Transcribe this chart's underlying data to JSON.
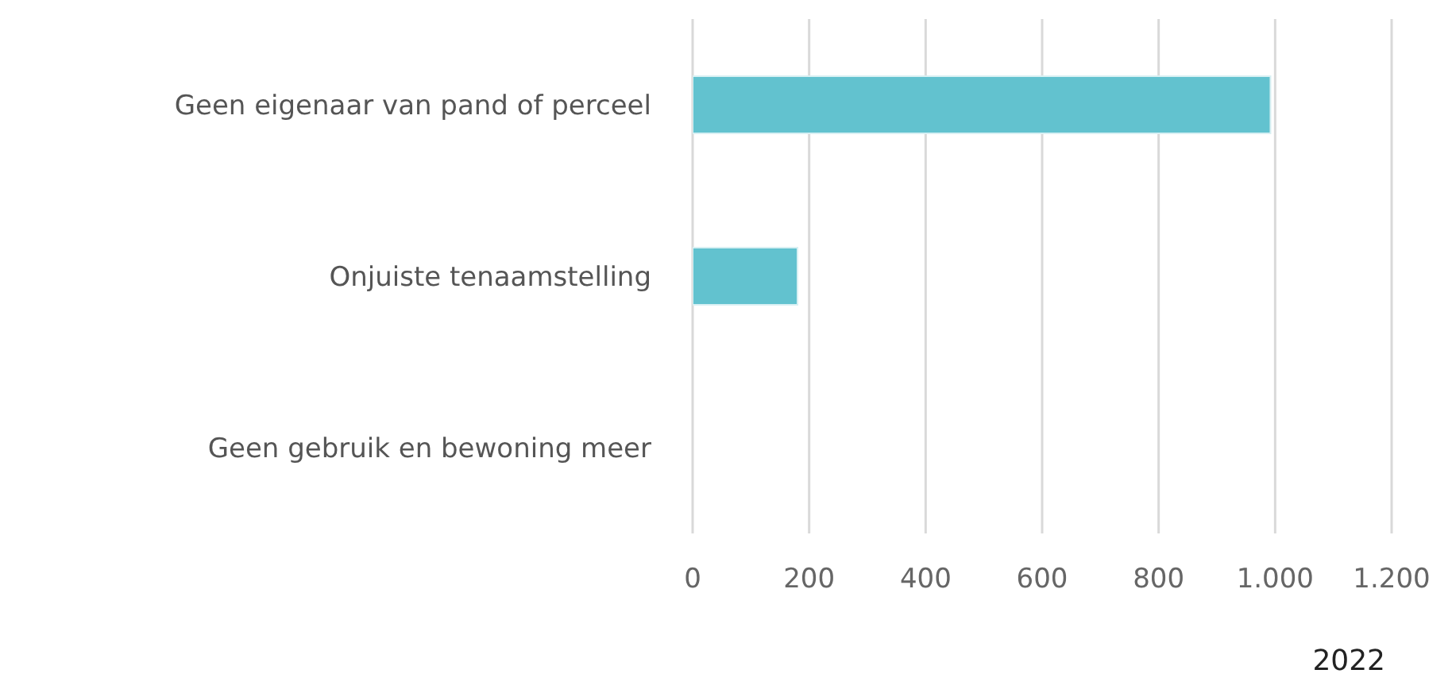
{
  "chart_data": {
    "type": "bar",
    "orientation": "horizontal",
    "categories": [
      "Geen eigenaar van pand of perceel",
      "Onjuiste tenaamstelling",
      "Geen gebruik en bewoning meer"
    ],
    "values": [
      992,
      180,
      0
    ],
    "color": "#62c2cf",
    "xlim": [
      0,
      1200
    ],
    "xticks": [
      0,
      200,
      400,
      600,
      800,
      {
        "value": 1000,
        "label": "1.000"
      },
      {
        "value": 1200,
        "label": "1.200"
      }
    ],
    "xlabel": "2022",
    "grid": "x",
    "legend": false
  }
}
